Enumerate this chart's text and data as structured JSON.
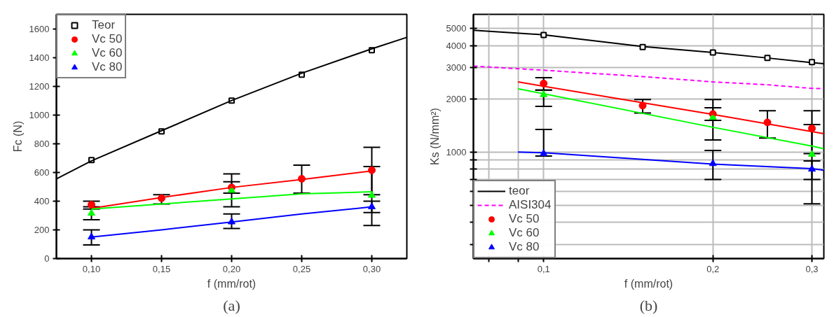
{
  "chart_data": [
    {
      "type": "scatter",
      "xlabel": "f (mm/rot)",
      "ylabel": "Fc (N)",
      "annotations": [
        "(a)"
      ],
      "xlim": [
        0.075,
        0.325
      ],
      "ylim": [
        0,
        1700
      ],
      "xticks": [
        {
          "value": 0.1,
          "label": "0,10"
        },
        {
          "value": 0.15,
          "label": "0,15"
        },
        {
          "value": 0.2,
          "label": "0,20"
        },
        {
          "value": 0.25,
          "label": "0,25"
        },
        {
          "value": 0.3,
          "label": "0,30"
        }
      ],
      "yticks": [
        0,
        200,
        400,
        600,
        800,
        1000,
        1200,
        1400,
        1600
      ],
      "grid": false,
      "legend": "top left",
      "series": [
        {
          "name": "Teor",
          "marker": "square",
          "color": "#000000",
          "x": [
            0.1,
            0.15,
            0.2,
            0.25,
            0.3
          ],
          "values": [
            685,
            885,
            1100,
            1280,
            1450
          ]
        },
        {
          "name": "Vc 50",
          "marker": "circle",
          "color": "#ff0000",
          "x": [
            0.1,
            0.15,
            0.2,
            0.25,
            0.3
          ],
          "values": [
            375,
            420,
            495,
            555,
            615
          ],
          "errors": [
            [
              345,
              400
            ],
            [
              380,
              445
            ],
            [
              455,
              535
            ],
            [
              455,
              650
            ],
            [
              445,
              775
            ]
          ]
        },
        {
          "name": "Vc 60",
          "marker": "triangle",
          "color": "#00ff00",
          "x": [
            0.1,
            0.2,
            0.3
          ],
          "values": [
            315,
            475,
            440
          ],
          "errors": [
            [
              270,
              360
            ],
            [
              360,
              590
            ],
            [
              230,
              640
            ]
          ]
        },
        {
          "name": "Vc 80",
          "marker": "triangle",
          "color": "#0000ff",
          "x": [
            0.1,
            0.2,
            0.3
          ],
          "values": [
            150,
            255,
            360
          ],
          "errors": [
            [
              95,
              200
            ],
            [
              210,
              310
            ],
            [
              320,
              400
            ]
          ]
        },
        {
          "type": "line",
          "color": "#000000",
          "x": [
            0.075,
            0.1,
            0.15,
            0.2,
            0.25,
            0.3,
            0.325
          ],
          "values": [
            555,
            680,
            890,
            1100,
            1290,
            1460,
            1540
          ]
        },
        {
          "type": "line",
          "color": "#ff0000",
          "x": [
            0.1,
            0.15,
            0.2,
            0.25,
            0.3
          ],
          "values": [
            350,
            425,
            495,
            550,
            610
          ]
        },
        {
          "type": "line",
          "color": "#00ff00",
          "x": [
            0.1,
            0.15,
            0.2,
            0.25,
            0.3
          ],
          "values": [
            345,
            380,
            415,
            450,
            465
          ]
        },
        {
          "type": "line",
          "color": "#0000ff",
          "x": [
            0.1,
            0.15,
            0.2,
            0.25,
            0.3
          ],
          "values": [
            150,
            200,
            255,
            310,
            360
          ]
        }
      ]
    },
    {
      "type": "scatter",
      "xlabel": "f (mm/rot)",
      "ylabel": "Ks (N/mm²)",
      "annotations": [
        "(b)"
      ],
      "log": "xy",
      "xlim": [
        0.075,
        0.315
      ],
      "ylim": [
        250,
        6000
      ],
      "xticks": [
        {
          "value": 0.08,
          "label": null
        },
        {
          "value": 0.09,
          "label": null
        },
        {
          "value": 0.1,
          "label": "0,1"
        },
        {
          "value": 0.2,
          "label": "0,2"
        },
        {
          "value": 0.3,
          "label": "0,3"
        }
      ],
      "yticks": [
        {
          "value": 300,
          "label": null
        },
        {
          "value": 400,
          "label": null
        },
        {
          "value": 500,
          "label": null
        },
        {
          "value": 600,
          "label": null
        },
        {
          "value": 700,
          "label": null
        },
        {
          "value": 800,
          "label": null
        },
        {
          "value": 900,
          "label": null
        },
        1000,
        2000,
        3000,
        4000,
        5000
      ],
      "grid": true,
      "legend": "bottom left",
      "series": [
        {
          "name": "teor",
          "type": "line",
          "color": "#000000",
          "x": [
            0.075,
            0.1,
            0.15,
            0.2,
            0.25,
            0.3,
            0.315
          ],
          "values": [
            4880,
            4600,
            3950,
            3650,
            3400,
            3200,
            3160
          ]
        },
        {
          "name": "AISI304",
          "type": "line",
          "line_style": "dashed",
          "color": "#ff00ff",
          "x": [
            0.075,
            0.1,
            0.15,
            0.2,
            0.25,
            0.3,
            0.315
          ],
          "values": [
            3060,
            2900,
            2670,
            2490,
            2400,
            2290,
            2280
          ]
        },
        {
          "name": "Vc 50",
          "marker": "circle",
          "color": "#ff0000",
          "x": [
            0.1,
            0.15,
            0.2,
            0.25,
            0.3
          ],
          "values": [
            2440,
            1830,
            1640,
            1470,
            1360
          ],
          "errors": [
            [
              2240,
              2630
            ],
            [
              1660,
              1980
            ],
            [
              1510,
              1780
            ],
            [
              1200,
              1710
            ],
            [
              980,
              1710
            ]
          ]
        },
        {
          "name": "Vc 60",
          "marker": "triangle",
          "color": "#00ff00",
          "x": [
            0.1,
            0.2,
            0.3
          ],
          "values": [
            2110,
            1570,
            970
          ],
          "errors": [
            [
              1810,
              2240
            ],
            [
              1170,
              1980
            ],
            [
              700,
              1430
            ]
          ]
        },
        {
          "name": "Vc 80",
          "marker": "triangle",
          "color": "#0000ff",
          "x": [
            0.1,
            0.2,
            0.3
          ],
          "values": [
            980,
            860,
            800
          ],
          "errors": [
            [
              950,
              1340
            ],
            [
              700,
              1020
            ],
            [
              510,
              890
            ]
          ]
        },
        {
          "marker": "square",
          "color": "#000000",
          "x": [
            0.1,
            0.15,
            0.2,
            0.25,
            0.3
          ],
          "values": [
            4590,
            3920,
            3650,
            3400,
            3220
          ]
        },
        {
          "type": "line",
          "color": "#ff0000",
          "x": [
            0.09,
            0.2,
            0.315
          ],
          "values": [
            2490,
            1630,
            1270
          ]
        },
        {
          "type": "line",
          "color": "#00ff00",
          "x": [
            0.09,
            0.2,
            0.3,
            0.315
          ],
          "values": [
            2280,
            1380,
            1080,
            1045
          ]
        },
        {
          "type": "line",
          "color": "#0000ff",
          "x": [
            0.09,
            0.1,
            0.2,
            0.3,
            0.315
          ],
          "values": [
            1000,
            990,
            855,
            805,
            790
          ]
        }
      ]
    }
  ]
}
